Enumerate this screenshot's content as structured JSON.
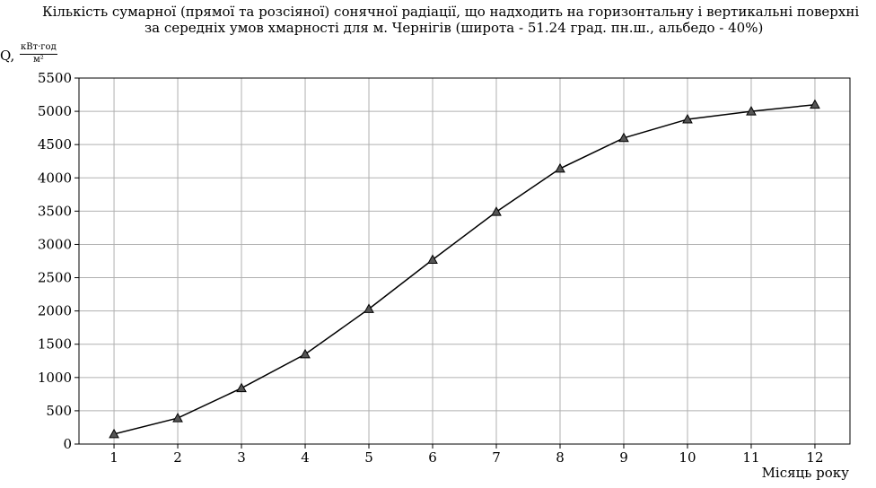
{
  "chart_data": {
    "type": "line",
    "title_line1": "Кількість сумарної (прямої та розсіяної) сонячної радіації, що надходить на горизонтальну і вертикальні поверхні",
    "title_line2": "за середніх умов хмарності для м. Чернігів (широта - 51.24 град. пн.ш., альбедо - 40%)",
    "ylabel": "Q,",
    "yunit_num": "кВт·год",
    "yunit_den": "м²",
    "xlabel": "Місяць року",
    "categories": [
      "1",
      "2",
      "3",
      "4",
      "5",
      "6",
      "7",
      "8",
      "9",
      "10",
      "11",
      "12"
    ],
    "x": [
      1,
      2,
      3,
      4,
      5,
      6,
      7,
      8,
      9,
      10,
      11,
      12
    ],
    "values": [
      150,
      390,
      840,
      1350,
      2030,
      2770,
      3490,
      4140,
      4600,
      4880,
      5000,
      5100
    ],
    "ylim": [
      0,
      5500
    ],
    "yticks": [
      "0",
      "500",
      "1000",
      "1500",
      "2000",
      "2500",
      "3000",
      "3500",
      "4000",
      "4500",
      "5000",
      "5500"
    ],
    "grid": true,
    "marker": "triangle",
    "colors": {
      "line": "#000000",
      "marker_fill": "#555555",
      "grid": "#b0b0b0"
    }
  }
}
